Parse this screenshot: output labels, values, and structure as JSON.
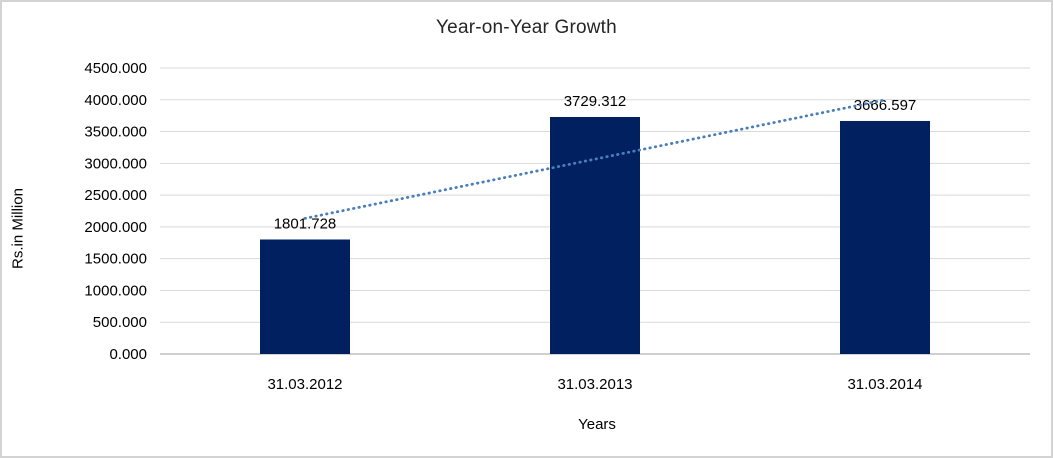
{
  "chart_data": {
    "type": "bar",
    "title": "Year-on-Year Growth",
    "xlabel": "Years",
    "ylabel": "Rs.in Million",
    "categories": [
      "31.03.2012",
      "31.03.2013",
      "31.03.2014"
    ],
    "values": [
      1801.728,
      3729.312,
      3666.597
    ],
    "data_labels": [
      "1801.728",
      "3729.312",
      "3666.597"
    ],
    "ylim": [
      0,
      4500
    ],
    "ytick_step": 500,
    "ytick_labels": [
      "4500.000",
      "4000.000",
      "3500.000",
      "3000.000",
      "2500.000",
      "2000.000",
      "1500.000",
      "1000.000",
      "500.000",
      "0.000"
    ],
    "grid": true,
    "legend": "none",
    "trendline": {
      "type": "linear",
      "style": "dotted"
    },
    "colors": {
      "bar": "#002060",
      "trendline": "#4a7ebb",
      "gridline": "#d9d9d9",
      "axis_line": "#c0c0c0",
      "text": "#000000",
      "title_text": "#262626",
      "frame_border": "#d3d3d3",
      "background": "#ffffff"
    }
  }
}
